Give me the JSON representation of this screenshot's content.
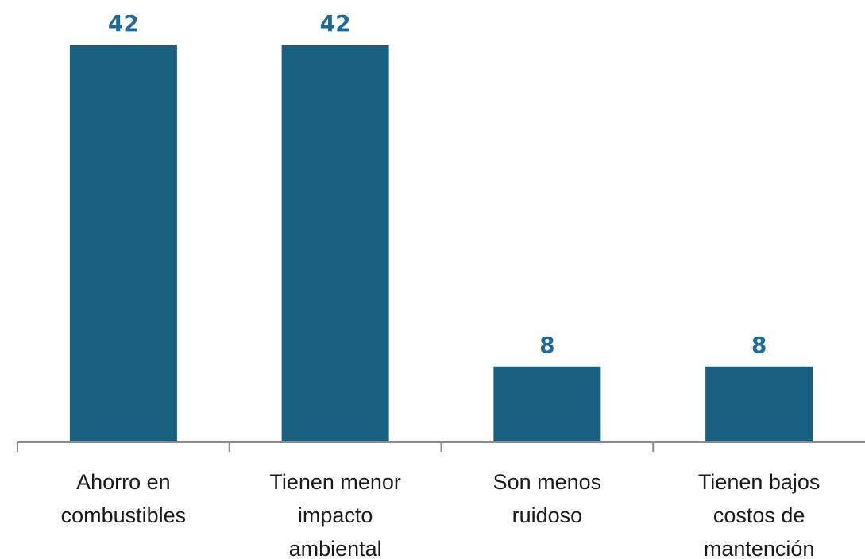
{
  "chart_data": {
    "type": "bar",
    "categories": [
      [
        "Ahorro en",
        "combustibles"
      ],
      [
        "Tienen menor",
        "impacto",
        "ambiental"
      ],
      [
        "Son menos",
        "ruidoso"
      ],
      [
        "Tienen bajos",
        "costos de",
        "mantención"
      ]
    ],
    "values": [
      42,
      42,
      8,
      8
    ],
    "data_labels": [
      "42",
      "42",
      "8",
      "8"
    ],
    "title": "",
    "xlabel": "",
    "ylabel": "",
    "ylim": [
      0,
      42
    ],
    "grid": false,
    "legend": "none",
    "colors": {
      "bar": "#195f80",
      "value_label": "#1e6a96",
      "axis": "#8c8c8c"
    }
  }
}
